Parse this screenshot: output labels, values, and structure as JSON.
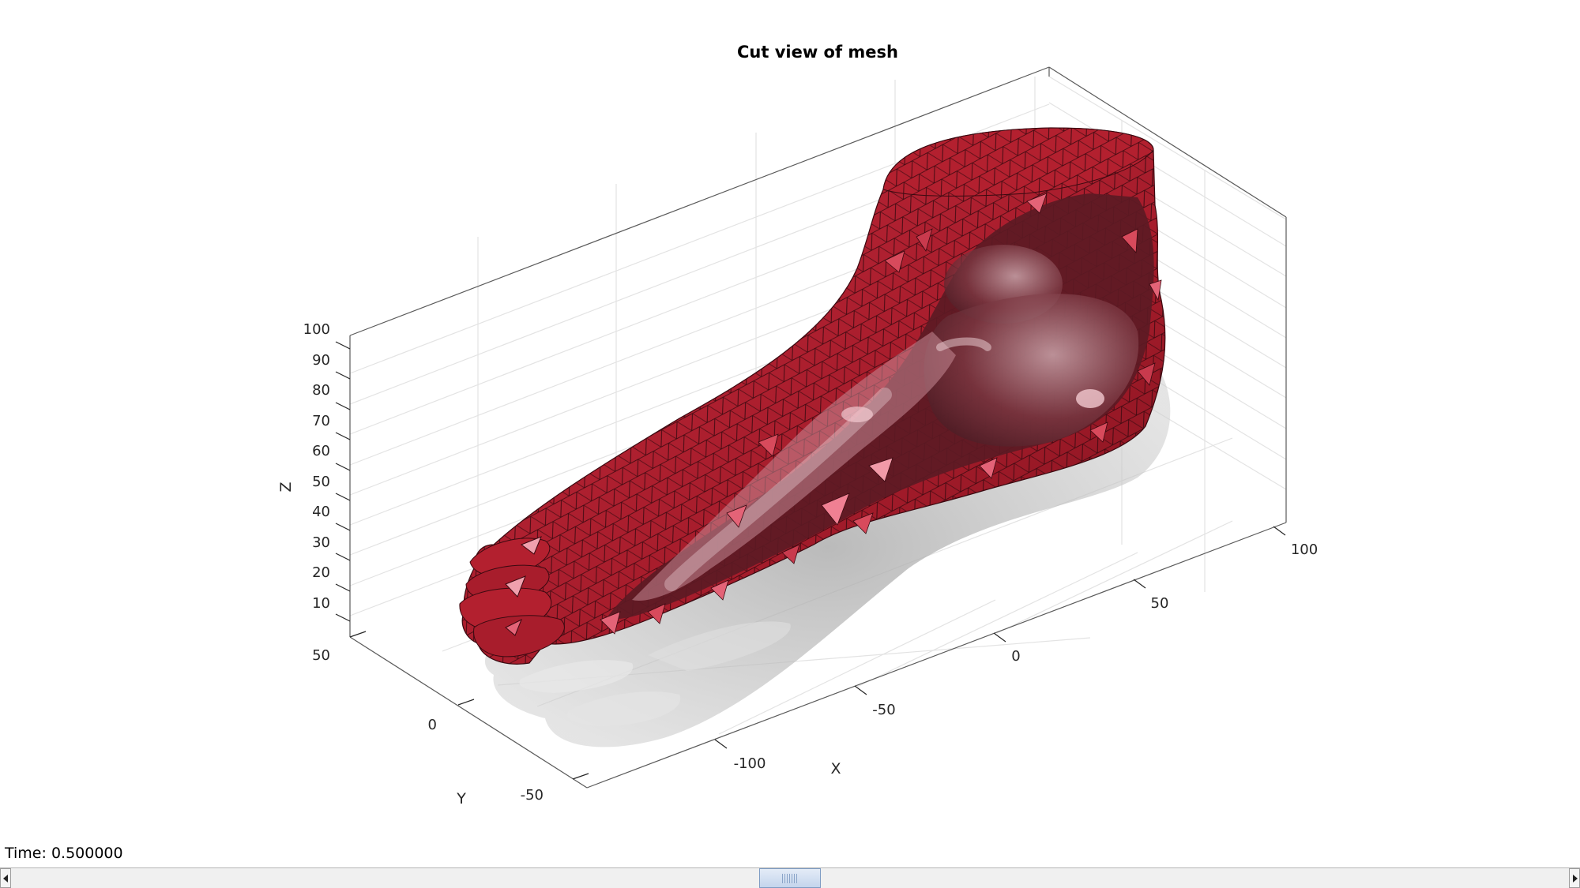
{
  "figure": {
    "title": "Cut view of mesh",
    "time_label": "Time: 0.500000",
    "slider": {
      "min": 0,
      "max": 1,
      "value": 0.5,
      "thumb_fraction": 0.04
    }
  },
  "chart_data": {
    "type": "3d-mesh",
    "title": "Cut view of mesh",
    "xlabel": "X",
    "ylabel": "Y",
    "zlabel": "Z",
    "x_ticks": [
      "-100",
      "-50",
      "0",
      "50",
      "100"
    ],
    "y_ticks": [
      "-50",
      "0",
      "50"
    ],
    "z_ticks": [
      "10",
      "20",
      "30",
      "40",
      "50",
      "60",
      "70",
      "80",
      "90",
      "100"
    ],
    "grid": true,
    "box": true,
    "surfaces": [
      {
        "name": "cut foot soft-tissue mesh",
        "color": "#b0202e"
      },
      {
        "name": "bone mesh (transparent)",
        "color": "#9a9a9a"
      },
      {
        "name": "full foot outline (transparent)",
        "color": "#c8c8c8"
      }
    ]
  }
}
